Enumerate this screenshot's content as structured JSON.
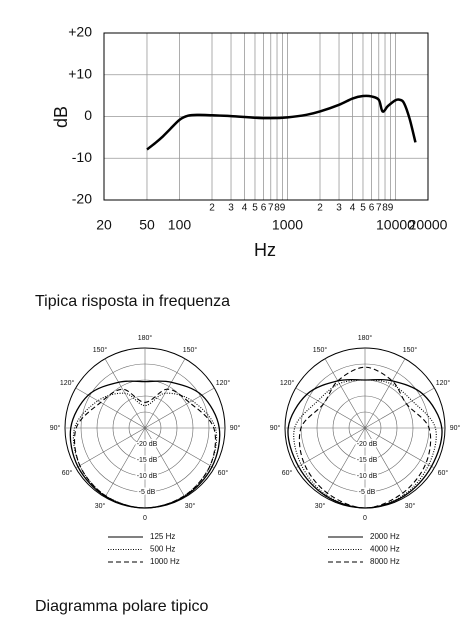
{
  "chart_data": [
    {
      "type": "line",
      "xlabel": "Hz",
      "ylabel": "dB",
      "xscale": "log",
      "xlim": [
        20,
        20000
      ],
      "ylim": [
        -20,
        20
      ],
      "xticks": [
        20,
        50,
        100,
        1000,
        10000,
        20000
      ],
      "xminor_ticks": [
        {
          "value": 200,
          "label": "2"
        },
        {
          "value": 300,
          "label": "3"
        },
        {
          "value": 400,
          "label": "4"
        },
        {
          "value": 500,
          "label": "5"
        },
        {
          "value": 600,
          "label": "6"
        },
        {
          "value": 700,
          "label": "7"
        },
        {
          "value": 800,
          "label": "8"
        },
        {
          "value": 900,
          "label": "9"
        },
        {
          "value": 2000,
          "label": "2"
        },
        {
          "value": 3000,
          "label": "3"
        },
        {
          "value": 4000,
          "label": "4"
        },
        {
          "value": 5000,
          "label": "5"
        },
        {
          "value": 6000,
          "label": "6"
        },
        {
          "value": 7000,
          "label": "7"
        },
        {
          "value": 8000,
          "label": "8"
        },
        {
          "value": 9000,
          "label": "9"
        }
      ],
      "yticks": [
        {
          "value": 20,
          "label": "+20"
        },
        {
          "value": 10,
          "label": "+10"
        },
        0,
        -10,
        -20
      ],
      "grid": true,
      "color": "#000000",
      "x": [
        50,
        60,
        70,
        80,
        100,
        120,
        150,
        200,
        300,
        500,
        700,
        1000,
        1500,
        2000,
        3000,
        4000,
        5000,
        6000,
        7000,
        7600,
        8500,
        10000,
        11000,
        12000,
        13500,
        15300
      ],
      "values": [
        -7.9,
        -6.3,
        -4.8,
        -3.3,
        -0.8,
        0.2,
        0.4,
        0.3,
        0.1,
        -0.3,
        -0.4,
        -0.2,
        0.4,
        1.2,
        2.8,
        4.3,
        4.9,
        4.8,
        4.0,
        1.2,
        2.5,
        3.9,
        4.0,
        3.2,
        -0.5,
        -6.2
      ]
    },
    {
      "type": "polar",
      "rlim": [
        -25,
        0
      ],
      "theta": [
        0,
        30,
        60,
        90,
        120,
        150,
        180,
        210,
        240,
        270,
        300,
        330
      ],
      "thetaticks": [
        0,
        {
          "value": 30,
          "label": "30°"
        },
        {
          "value": 60,
          "label": "60°"
        },
        {
          "value": 90,
          "label": "90°"
        },
        {
          "value": 120,
          "label": "120°"
        },
        {
          "value": 150,
          "label": "150°"
        },
        {
          "value": 180,
          "label": "180°"
        },
        {
          "value": 210,
          "label": "150°"
        },
        {
          "value": 240,
          "label": "120°"
        },
        {
          "value": 270,
          "label": "90°"
        },
        {
          "value": 300,
          "label": "60°"
        },
        {
          "value": 330,
          "label": "30°"
        }
      ],
      "rticks": [
        {
          "value": -20,
          "label": "-20 dB"
        },
        {
          "value": -15,
          "label": "-15 dB"
        },
        {
          "value": -10,
          "label": "-10 dB"
        },
        {
          "value": -5,
          "label": "-5 dB"
        }
      ],
      "series": [
        {
          "name": "125 Hz",
          "color": "#000000",
          "dash": "solid",
          "values": [
            0,
            -0.3,
            -0.8,
            -1.8,
            -4.5,
            -8.5,
            -10.5,
            -8.5,
            -4.5,
            -1.8,
            -0.8,
            -0.3
          ]
        },
        {
          "name": "500 Hz",
          "color": "#000000",
          "dash": "dotted",
          "values": [
            0,
            -0.5,
            -1.5,
            -3,
            -8,
            -12.5,
            -18,
            -12.5,
            -8,
            -3,
            -1.5,
            -0.5
          ]
        },
        {
          "name": "1000 Hz",
          "color": "#000000",
          "dash": "dashed",
          "values": [
            0,
            -0.5,
            -1.5,
            -3.5,
            -9,
            -11,
            -17,
            -11,
            -9,
            -3.5,
            -1.5,
            -0.5
          ]
        }
      ]
    },
    {
      "type": "polar",
      "rlim": [
        -25,
        0
      ],
      "theta": [
        0,
        30,
        60,
        90,
        120,
        150,
        180,
        210,
        240,
        270,
        300,
        330
      ],
      "thetaticks": [
        0,
        {
          "value": 30,
          "label": "30°"
        },
        {
          "value": 60,
          "label": "60°"
        },
        {
          "value": 90,
          "label": "90°"
        },
        {
          "value": 120,
          "label": "120°"
        },
        {
          "value": 150,
          "label": "150°"
        },
        {
          "value": 180,
          "label": "180°"
        },
        {
          "value": 210,
          "label": "150°"
        },
        {
          "value": 240,
          "label": "120°"
        },
        {
          "value": 270,
          "label": "90°"
        },
        {
          "value": 300,
          "label": "60°"
        },
        {
          "value": 330,
          "label": "30°"
        }
      ],
      "rticks": [
        {
          "value": -20,
          "label": "-20 dB"
        },
        {
          "value": -15,
          "label": "-15 dB"
        },
        {
          "value": -10,
          "label": "-10 dB"
        },
        {
          "value": -5,
          "label": "-5 dB"
        }
      ],
      "series": [
        {
          "name": "2000 Hz",
          "color": "#000000",
          "dash": "solid",
          "values": [
            0,
            -0.5,
            -1,
            -1,
            -4,
            -8,
            -10,
            -8,
            -4,
            -1,
            -1,
            -0.5
          ]
        },
        {
          "name": "4000 Hz",
          "color": "#000000",
          "dash": "dotted",
          "values": [
            0,
            -0.8,
            -2,
            -3,
            -8,
            -9,
            -10,
            -9,
            -8,
            -3,
            -2,
            -0.8
          ]
        },
        {
          "name": "8000 Hz",
          "color": "#000000",
          "dash": "dashed",
          "values": [
            0,
            -1.5,
            -3,
            -5,
            -10,
            -8,
            -6,
            -8,
            -10,
            -5,
            -3,
            -1.5
          ]
        }
      ]
    }
  ],
  "captions": [
    "Tipica risposta in frequenza",
    "Diagramma polare tipico"
  ]
}
